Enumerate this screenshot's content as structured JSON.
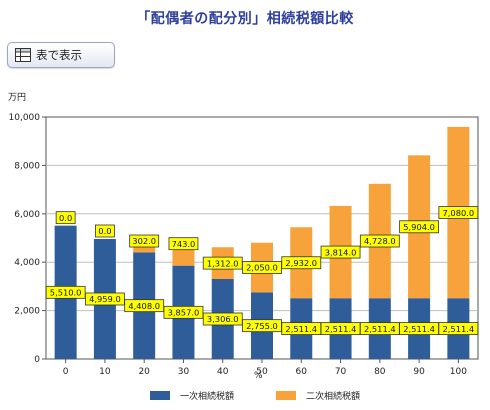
{
  "title": "「配偶者の配分別」相続税額比較",
  "toolbar": {
    "table_button_label": "表で表示"
  },
  "chart_data": {
    "type": "bar",
    "stacked": true,
    "ylabel": "万円",
    "xlabel": "%",
    "ylim": [
      0,
      10000
    ],
    "yticks": [
      0,
      2000,
      4000,
      6000,
      8000,
      10000
    ],
    "ytick_labels": [
      "0",
      "2,000",
      "4,000",
      "6,000",
      "8,000",
      "10,000"
    ],
    "categories": [
      "0",
      "10",
      "20",
      "30",
      "40",
      "50",
      "60",
      "70",
      "80",
      "90",
      "100"
    ],
    "grid": true,
    "legend_position": "bottom",
    "series": [
      {
        "name": "一次相続税額",
        "color": "#2f5d9a",
        "values": [
          5510.0,
          4959.0,
          4408.0,
          3857.0,
          3306.0,
          2755.0,
          2511.4,
          2511.4,
          2511.4,
          2511.4,
          2511.4
        ],
        "labels": [
          "5,510.0",
          "4,959.0",
          "4,408.0",
          "3,857.0",
          "3,306.0",
          "2,755.0",
          "2,511.4",
          "2,511.4",
          "2,511.4",
          "2,511.4",
          "2,511.4"
        ]
      },
      {
        "name": "二次相続税額",
        "color": "#f7a23a",
        "values": [
          0.0,
          0.0,
          302.0,
          743.0,
          1312.0,
          2050.0,
          2932.0,
          3814.0,
          4728.0,
          5904.0,
          7080.0
        ],
        "labels": [
          "0.0",
          "0.0",
          "302.0",
          "743.0",
          "1,312.0",
          "2,050.0",
          "2,932.0",
          "3,814.0",
          "4,728.0",
          "5,904.0",
          "7,080.0"
        ]
      }
    ],
    "label_style": {
      "background": "#ffff00",
      "border": "#333333"
    }
  }
}
